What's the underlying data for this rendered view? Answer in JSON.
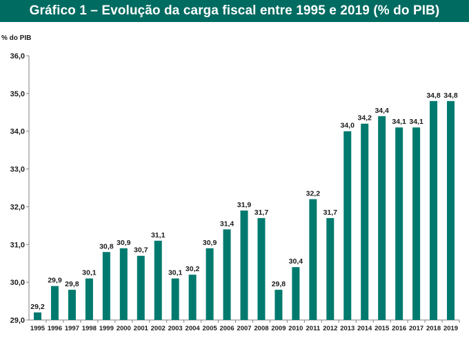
{
  "header": {
    "title": "Gráfico 1 – Evolução da carga fiscal entre 1995 e 2019 (% do PIB)"
  },
  "chart_data": {
    "type": "bar",
    "title": "Gráfico 1 – Evolução da carga fiscal entre 1995 e 2019 (% do PIB)",
    "xlabel": "",
    "ylabel": "% do PIB",
    "ylim": [
      29.0,
      36.0
    ],
    "yticks": [
      29.0,
      30.0,
      31.0,
      32.0,
      33.0,
      34.0,
      35.0,
      36.0
    ],
    "ytick_labels": [
      "29,0",
      "30,0",
      "31,0",
      "32,0",
      "33,0",
      "34,0",
      "35,0",
      "36,0"
    ],
    "categories": [
      "1995",
      "1996",
      "1997",
      "1998",
      "1999",
      "2000",
      "2001",
      "2002",
      "2003",
      "2004",
      "2005",
      "2006",
      "2007",
      "2008",
      "2009",
      "2010",
      "2011",
      "2012",
      "2013",
      "2014",
      "2015",
      "2016",
      "2017",
      "2018",
      "2019"
    ],
    "values": [
      29.2,
      29.9,
      29.8,
      30.1,
      30.8,
      30.9,
      30.7,
      31.1,
      30.1,
      30.2,
      30.9,
      31.4,
      31.9,
      31.7,
      29.8,
      30.4,
      32.2,
      31.7,
      34.0,
      34.2,
      34.4,
      34.1,
      34.1,
      34.8,
      34.8
    ],
    "value_labels": [
      "29,2",
      "29,9",
      "29,8",
      "30,1",
      "30,8",
      "30,9",
      "30,7",
      "31,1",
      "30,1",
      "30,2",
      "30,9",
      "31,4",
      "31,9",
      "31,7",
      "29,8",
      "30,4",
      "32,2",
      "31,7",
      "34,0",
      "34,2",
      "34,4",
      "34,1",
      "34,1",
      "34,8",
      "34,8"
    ],
    "bar_color": "#007a6e",
    "grid": false
  }
}
